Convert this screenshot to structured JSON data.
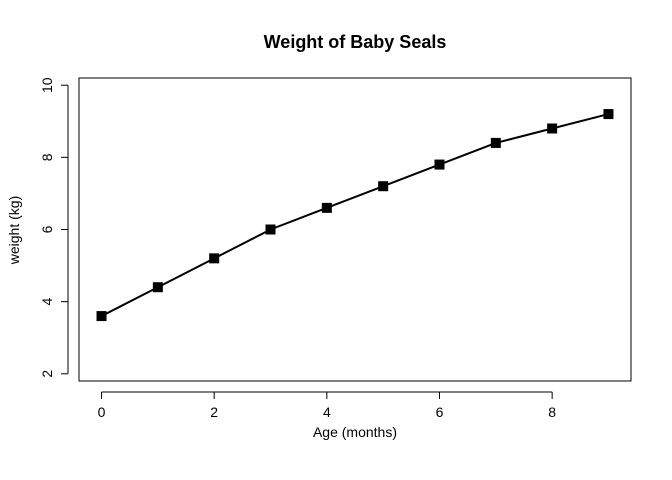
{
  "chart_data": {
    "type": "line",
    "title": "Weight of Baby Seals",
    "xlabel": "Age (months)",
    "ylabel": "weight (kg)",
    "x": [
      0,
      1,
      2,
      3,
      4,
      5,
      6,
      7,
      8,
      9
    ],
    "series": [
      {
        "values": [
          3.6,
          4.4,
          5.2,
          6.0,
          6.6,
          7.2,
          7.8,
          8.4,
          8.8,
          9.2
        ]
      }
    ],
    "xlim": [
      -0.4,
      9.4
    ],
    "ylim": [
      1.8,
      10.2
    ],
    "xticks": [
      0,
      2,
      4,
      6,
      8
    ],
    "yticks": [
      2,
      4,
      6,
      8,
      10
    ],
    "marker": "square",
    "grid": false,
    "colors": {
      "series": "#000000"
    }
  }
}
